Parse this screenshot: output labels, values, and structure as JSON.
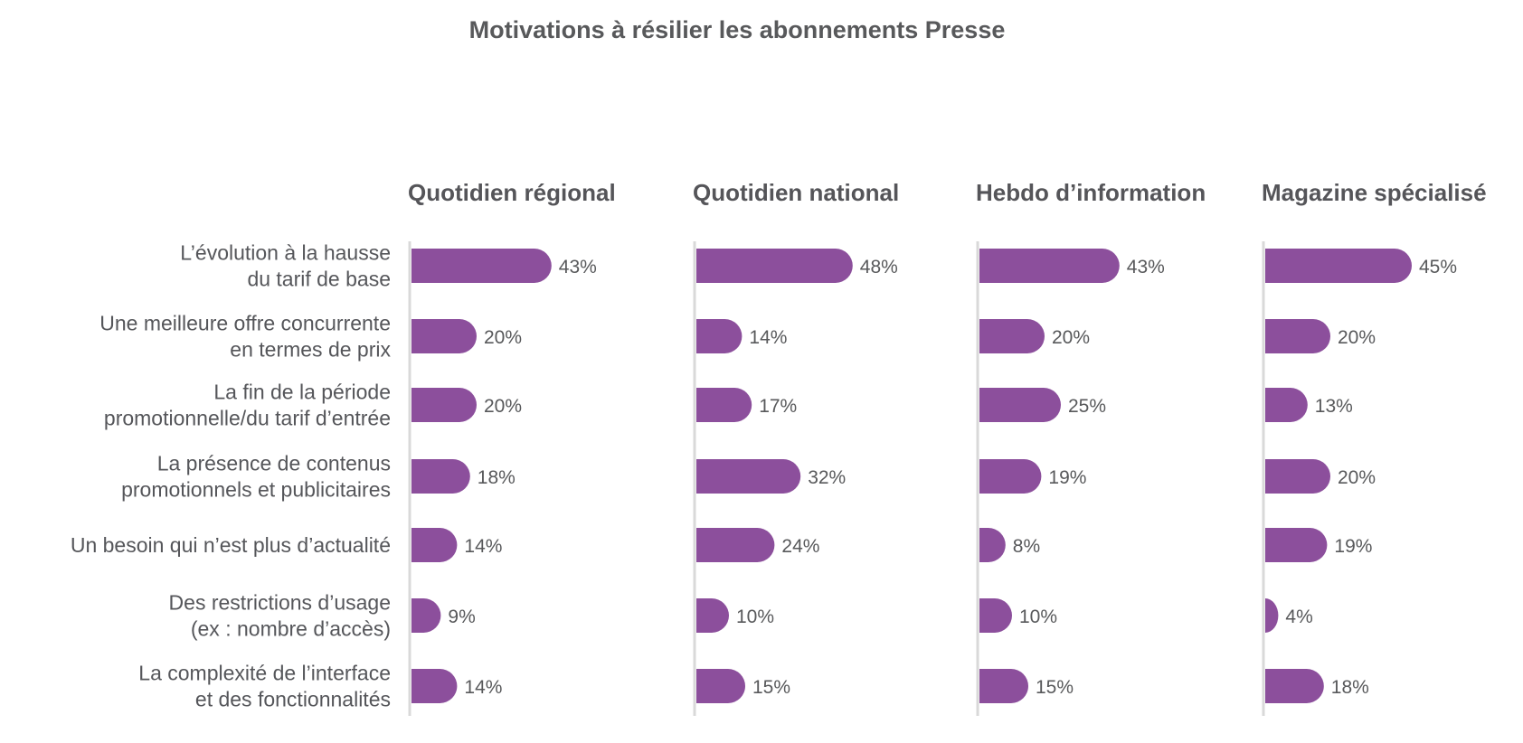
{
  "chart_data": {
    "type": "bar",
    "orientation": "horizontal",
    "title": "Motivations à résilier les abonnements Presse",
    "categories": [
      [
        "L’évolution à la hausse",
        "du tarif de base"
      ],
      [
        "Une meilleure offre concurrente",
        "en termes de prix"
      ],
      [
        "La fin de la période",
        "promotionnelle/du tarif d’entrée"
      ],
      [
        "La présence de contenus",
        "promotionnels et publicitaires"
      ],
      [
        "Un besoin qui n’est plus d’actualité"
      ],
      [
        "Des restrictions d’usage",
        "(ex : nombre d’accès)"
      ],
      [
        "La complexité de l’interface",
        "et des fonctionnalités"
      ]
    ],
    "series": [
      {
        "name": "Quotidien régional",
        "values": [
          43,
          20,
          20,
          18,
          14,
          9,
          14
        ]
      },
      {
        "name": "Quotidien national",
        "values": [
          48,
          14,
          17,
          32,
          24,
          10,
          15
        ]
      },
      {
        "name": "Hebdo d’information",
        "values": [
          43,
          20,
          25,
          19,
          8,
          10,
          15
        ]
      },
      {
        "name": "Magazine spécialisé",
        "values": [
          45,
          20,
          13,
          20,
          19,
          4,
          18
        ]
      }
    ],
    "value_suffix": "%",
    "xlim": [
      0,
      100
    ],
    "grid": false,
    "legend": "none",
    "colors": {
      "bar": "#8c4f9c",
      "axis": "#d9d9d9",
      "text": "#58595b"
    }
  }
}
